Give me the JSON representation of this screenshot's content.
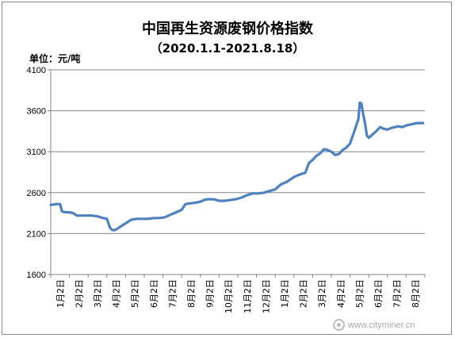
{
  "chart_data": {
    "type": "line",
    "title": "中国再生资源废钢价格指数",
    "subtitle": "（2020.1.1-2021.8.18）",
    "unit_label": "单位：元/吨",
    "ylim": [
      1600,
      4100
    ],
    "yticks": [
      1600,
      2100,
      2600,
      3100,
      3600,
      4100
    ],
    "xtick_labels": [
      "1月2日",
      "2月2日",
      "3月2日",
      "4月2日",
      "5月2日",
      "6月2日",
      "7月2日",
      "8月2日",
      "9月2日",
      "10月2日",
      "11月2日",
      "12月2日",
      "1月2日",
      "2月2日",
      "3月2日",
      "4月2日",
      "5月2日",
      "6月2日",
      "7月2日",
      "8月2日"
    ],
    "grid": true,
    "legend": "none",
    "line_color": "#4f81bd",
    "series": [
      {
        "x": [
          0,
          0.3,
          0.5,
          0.6,
          0.8,
          1.0,
          1.2,
          1.4,
          1.6,
          1.8,
          2.0,
          2.2,
          2.5,
          2.8,
          3.0,
          3.08,
          3.15,
          3.25,
          3.35,
          3.5,
          3.7,
          3.9,
          4.1,
          4.3,
          4.6,
          4.9,
          5.2,
          5.5,
          5.8,
          6.1,
          6.4,
          6.6,
          6.8,
          7.0,
          7.2,
          7.5,
          7.8,
          8.0,
          8.2,
          8.4,
          8.7,
          9.0,
          9.3,
          9.6,
          9.9,
          10.2,
          10.5,
          10.8,
          11.1,
          11.4,
          11.7,
          12.0,
          12.3,
          12.6,
          12.8,
          13.0,
          13.2,
          13.4,
          13.6,
          13.8,
          14.0,
          14.2,
          14.4,
          14.6,
          14.8,
          15.0,
          15.2,
          15.4,
          15.6,
          15.8,
          16.0,
          16.2,
          16.45,
          16.52,
          16.6,
          16.7,
          16.8,
          16.9,
          17.0,
          17.2,
          17.4,
          17.6,
          17.8,
          18.0,
          18.2,
          18.4,
          18.6,
          18.8,
          19.0,
          19.2,
          19.4,
          19.6,
          19.9
        ],
        "y": [
          2450,
          2460,
          2460,
          2370,
          2360,
          2360,
          2350,
          2320,
          2320,
          2320,
          2320,
          2320,
          2310,
          2290,
          2280,
          2230,
          2180,
          2150,
          2140,
          2150,
          2180,
          2210,
          2240,
          2270,
          2280,
          2280,
          2280,
          2290,
          2290,
          2300,
          2330,
          2350,
          2370,
          2390,
          2460,
          2470,
          2480,
          2490,
          2510,
          2520,
          2520,
          2500,
          2500,
          2510,
          2520,
          2540,
          2570,
          2590,
          2590,
          2600,
          2620,
          2640,
          2700,
          2730,
          2760,
          2790,
          2810,
          2830,
          2840,
          2960,
          3000,
          3050,
          3080,
          3130,
          3120,
          3100,
          3060,
          3070,
          3120,
          3150,
          3200,
          3330,
          3500,
          3700,
          3690,
          3560,
          3450,
          3300,
          3270,
          3310,
          3350,
          3400,
          3380,
          3370,
          3390,
          3400,
          3410,
          3400,
          3420,
          3430,
          3440,
          3450,
          3450
        ]
      }
    ]
  },
  "watermark": {
    "icon": "cityminer-logo-icon",
    "text": "www.cityminer.cn"
  }
}
